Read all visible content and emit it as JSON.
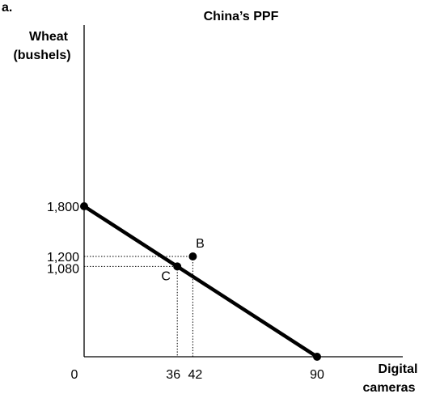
{
  "chart_data": {
    "type": "line",
    "panel_label": "a.",
    "title": "China’s PPF",
    "ylabel_lines": [
      "Wheat",
      "(bushels)"
    ],
    "xlabel_lines": [
      "Digital",
      "cameras"
    ],
    "xlim": [
      0,
      90
    ],
    "ylim": [
      0,
      1800
    ],
    "x_ticks": [
      {
        "value": 0,
        "label": "0"
      },
      {
        "value": 36,
        "label": "36"
      },
      {
        "value": 42,
        "label": "42"
      },
      {
        "value": 90,
        "label": "90"
      }
    ],
    "y_ticks": [
      {
        "value": 1800,
        "label": "1,800"
      },
      {
        "value": 1200,
        "label": "1,200"
      },
      {
        "value": 1080,
        "label": "1,080"
      }
    ],
    "series": [
      {
        "x": [
          0,
          90
        ],
        "y": [
          1800,
          0
        ]
      }
    ],
    "points": [
      {
        "label": "B",
        "x": 42,
        "y": 1200
      },
      {
        "label": "C",
        "x": 36,
        "y": 1080
      }
    ],
    "grid": false,
    "colors": {
      "line": "#000000",
      "guide": "#000000"
    }
  }
}
